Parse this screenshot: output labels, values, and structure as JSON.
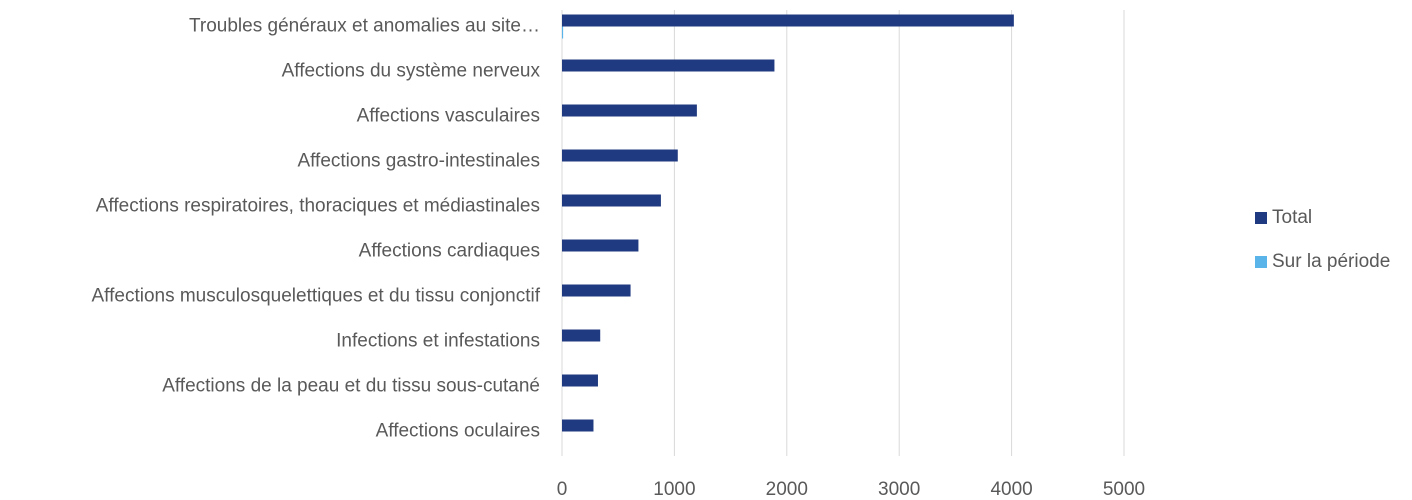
{
  "chart_data": {
    "type": "bar",
    "orientation": "horizontal",
    "categories": [
      "Troubles généraux et anomalies au site…",
      "Affections du système nerveux",
      "Affections vasculaires",
      "Affections gastro-intestinales",
      "Affections respiratoires, thoraciques et médiastinales",
      "Affections cardiaques",
      "Affections musculosquelettiques et du tissu conjonctif",
      "Infections et infestations",
      "Affections de la peau et du tissu sous-cutané",
      "Affections oculaires"
    ],
    "series": [
      {
        "name": "Total",
        "color": "#1f3a80",
        "values": [
          4020,
          1890,
          1200,
          1030,
          880,
          680,
          610,
          340,
          320,
          280
        ]
      },
      {
        "name": "Sur la période",
        "color": "#5ab4ea",
        "values": [
          10,
          0,
          0,
          0,
          0,
          0,
          0,
          0,
          0,
          0
        ]
      }
    ],
    "xlim": [
      0,
      5000
    ],
    "xticks": [
      0,
      1000,
      2000,
      3000,
      4000,
      5000
    ],
    "grid": true,
    "legend": "right"
  }
}
